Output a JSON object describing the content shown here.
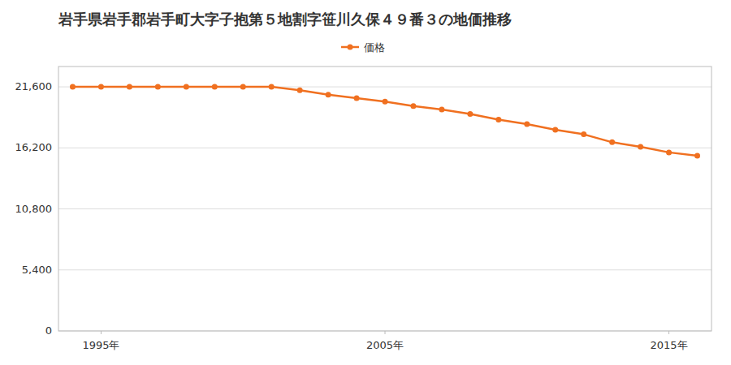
{
  "chart_data": {
    "type": "line",
    "title": "岩手県岩手郡岩手町大字子抱第５地割字笹川久保４９番３の地価推移",
    "x": [
      1994,
      1995,
      1996,
      1997,
      1998,
      1999,
      2000,
      2001,
      2002,
      2003,
      2004,
      2005,
      2006,
      2007,
      2008,
      2009,
      2010,
      2011,
      2012,
      2013,
      2014,
      2015,
      2016
    ],
    "series": [
      {
        "name": "価格",
        "color": "#f07020",
        "marker": "circle",
        "line_style": "solid",
        "values": [
          21600,
          21600,
          21600,
          21600,
          21600,
          21600,
          21600,
          21600,
          21300,
          20900,
          20600,
          20300,
          19900,
          19600,
          19200,
          18700,
          18300,
          17800,
          17400,
          16700,
          16300,
          15800,
          15500
        ]
      }
    ],
    "xlim": [
      1993.5,
      2016.5
    ],
    "xticks": [
      {
        "value": 1995,
        "label": "1995年"
      },
      {
        "value": 2005,
        "label": "2005年"
      },
      {
        "value": 2015,
        "label": "2015年"
      }
    ],
    "ylim": [
      0,
      23400
    ],
    "yticks": [
      0,
      {
        "value": 5400,
        "label": "5,400"
      },
      {
        "value": 10800,
        "label": "10,800"
      },
      {
        "value": 16200,
        "label": "16,200"
      },
      {
        "value": 21600,
        "label": "21,600"
      }
    ],
    "grid": true,
    "legend": "top"
  }
}
